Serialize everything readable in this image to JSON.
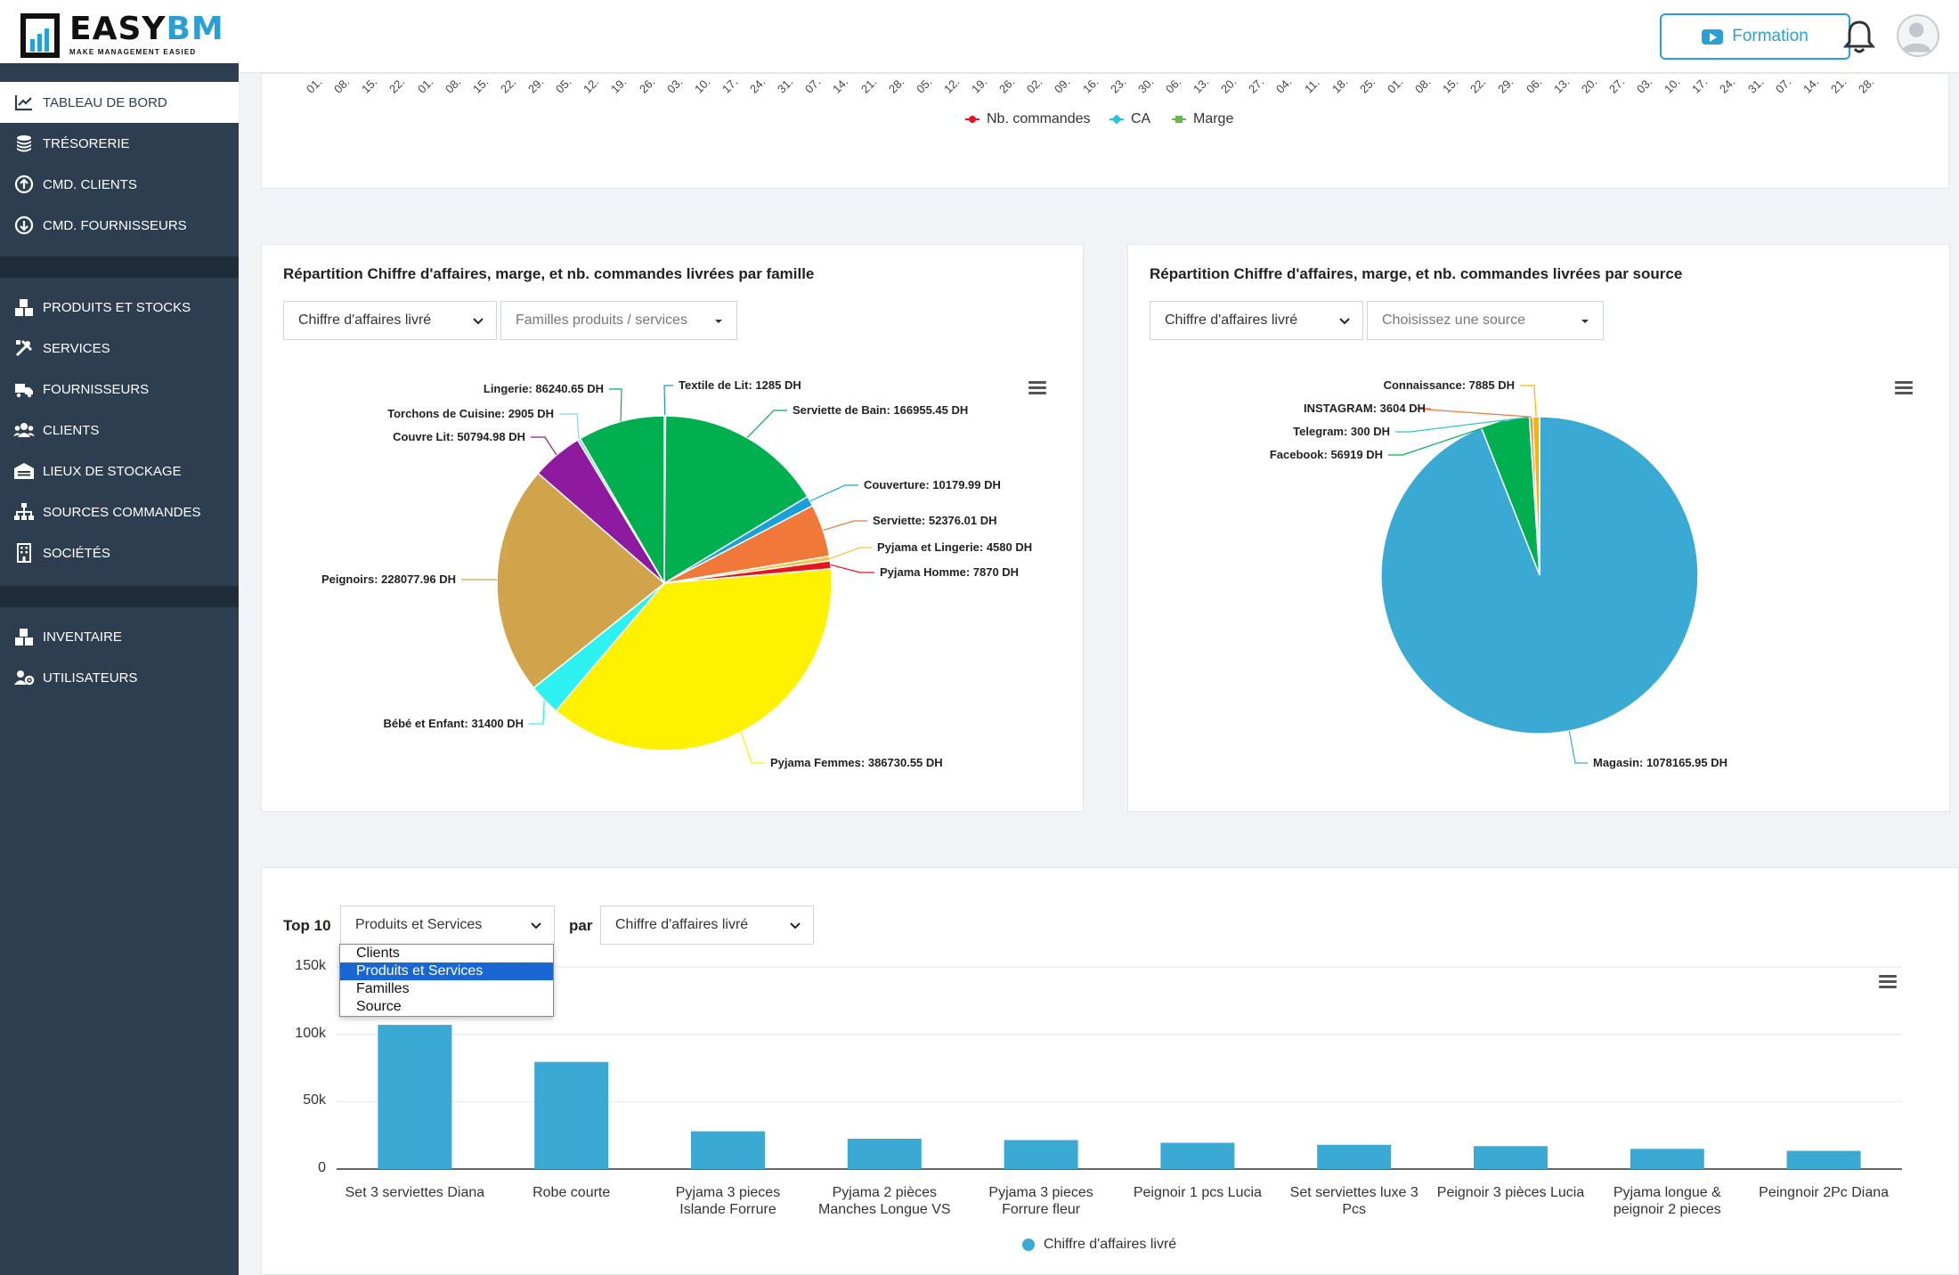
{
  "logo": {
    "name_part1": "EASY",
    "name_part2": "BM",
    "tagline": "MAKE MANAGEMENT EASIED"
  },
  "sidebar": {
    "groups": [
      [
        {
          "label": "Tableau de bord",
          "icon": "chart-line-icon",
          "active": true
        },
        {
          "label": "Trésorerie",
          "icon": "coins-icon"
        },
        {
          "label": "Cmd. clients",
          "icon": "arrow-circle-up-icon"
        },
        {
          "label": "Cmd. fournisseurs",
          "icon": "arrow-circle-down-icon"
        }
      ],
      [
        {
          "label": "Produits et stocks",
          "icon": "boxes-icon"
        },
        {
          "label": "Services",
          "icon": "tools-icon"
        },
        {
          "label": "Fournisseurs",
          "icon": "truck-loading-icon"
        },
        {
          "label": "Clients",
          "icon": "users-icon"
        },
        {
          "label": "Lieux de stockage",
          "icon": "warehouse-icon"
        },
        {
          "label": "Sources commandes",
          "icon": "sitemap-icon"
        },
        {
          "label": "Sociétés",
          "icon": "building-icon"
        }
      ],
      [
        {
          "label": "Inventaire",
          "icon": "boxes-icon"
        },
        {
          "label": "Utilisateurs",
          "icon": "users-cog-icon"
        }
      ]
    ]
  },
  "header": {
    "formation_label": "Formation"
  },
  "top_chart": {
    "x_ticks": [
      "01.",
      "08.",
      "15.",
      "22.",
      "01.",
      "08.",
      "15.",
      "22.",
      "29.",
      "05.",
      "12.",
      "19.",
      "26.",
      "03.",
      "10.",
      "17.",
      "24.",
      "31.",
      "07.",
      "14.",
      "21.",
      "28.",
      "05.",
      "12.",
      "19.",
      "26.",
      "02.",
      "09.",
      "16.",
      "23.",
      "30.",
      "06.",
      "13.",
      "20.",
      "27.",
      "04.",
      "11.",
      "18.",
      "25.",
      "01.",
      "08.",
      "15.",
      "22.",
      "29.",
      "06.",
      "13.",
      "20.",
      "27.",
      "03.",
      "10.",
      "17.",
      "24.",
      "31.",
      "07.",
      "14.",
      "21.",
      "28."
    ],
    "legend": [
      {
        "name": "Nb. commandes",
        "color": "#e8141c"
      },
      {
        "name": "CA",
        "color": "#22c7e3"
      },
      {
        "name": "Marge",
        "color": "#67b84a"
      }
    ]
  },
  "famille_card": {
    "title": "Répartition Chiffre d'affaires, marge, et nb. commandes livrées par famille",
    "select_metric": "Chiffre d'affaires livré",
    "select_family_placeholder": "Familles produits / services"
  },
  "source_card": {
    "title": "Répartition Chiffre d'affaires, marge, et nb. commandes livrées par source",
    "select_metric": "Chiffre d'affaires livré",
    "select_source_placeholder": "Choisissez une source"
  },
  "top10": {
    "label_top": "Top 10",
    "label_par": "par",
    "select_category": "Produits et Services",
    "select_metric": "Chiffre d'affaires livré",
    "dropdown_options": [
      "Clients",
      "Produits et Services",
      "Familles",
      "Source"
    ],
    "dropdown_selected": "Produits et Services"
  },
  "chart_data": [
    {
      "type": "pie",
      "name": "famille",
      "slices": [
        {
          "label": "Textile de Lit: 1285 DH",
          "value": 1285,
          "color": "#1a8fd6"
        },
        {
          "label": "Serviette de Bain: 166955.45 DH",
          "value": 166955.45,
          "color": "#00b050"
        },
        {
          "label": "Couverture: 10179.99 DH",
          "value": 10179.99,
          "color": "#1aa0d8"
        },
        {
          "label": "Serviette: 52376.01 DH",
          "value": 52376.01,
          "color": "#f07838"
        },
        {
          "label": "Pyjama et Lingerie: 4580 DH",
          "value": 4580,
          "color": "#f7c142"
        },
        {
          "label": "Pyjama Homme: 7870 DH",
          "value": 7870,
          "color": "#e8141c"
        },
        {
          "label": "Pyjama Femmes: 386730.55 DH",
          "value": 386730.55,
          "color": "#fff200"
        },
        {
          "label": "Bébé et Enfant: 31400 DH",
          "value": 31400,
          "color": "#2ef2f2"
        },
        {
          "label": "Peignoirs: 228077.96 DH",
          "value": 228077.96,
          "color": "#d1a44c"
        },
        {
          "label": "Couvre Lit: 50794.98 DH",
          "value": 50794.98,
          "color": "#8e1aa0"
        },
        {
          "label": "Torchons de Cuisine: 2905 DH",
          "value": 2905,
          "color": "#8fd0e8"
        },
        {
          "label": "Lingerie: 86240.65 DH",
          "value": 86240.65,
          "color": "#00b050"
        }
      ]
    },
    {
      "type": "pie",
      "name": "source",
      "slices": [
        {
          "label": "Magasin: 1078165.95 DH",
          "value": 1078165.95,
          "color": "#3aaad4"
        },
        {
          "label": "Facebook: 56919 DH",
          "value": 56919,
          "color": "#00b050"
        },
        {
          "label": "Telegram: 300 DH",
          "value": 300,
          "color": "#2ec4d6"
        },
        {
          "label": "INSTAGRAM: 3604 DH",
          "value": 3604,
          "color": "#f07838"
        },
        {
          "label": "Connaissance: 7885 DH",
          "value": 7885,
          "color": "#f7b500"
        }
      ]
    },
    {
      "type": "bar",
      "name": "top10",
      "categories": [
        "Set 3 serviettes Diana",
        "Robe courte",
        "Pyjama 3 pieces Islande Forrure",
        "Pyjama 2 pièces Manches Longue VS",
        "Pyjama 3 pieces Forrure fleur",
        "Peignoir 1 pcs Lucia",
        "Set serviettes luxe 3 Pcs",
        "Peignoir 3 pièces Lucia",
        "Pyjama longue & peignoir 2 pieces",
        "Peingnoir 2Pc Diana"
      ],
      "series": [
        {
          "name": "Chiffre d'affaires livré",
          "values": [
            107000,
            79500,
            28000,
            22500,
            21500,
            19500,
            18000,
            17000,
            15000,
            13500
          ],
          "color": "#3aaad4"
        }
      ],
      "yticks": [
        "0",
        "50k",
        "100k",
        "150k"
      ],
      "ylim": [
        0,
        150000
      ]
    }
  ]
}
